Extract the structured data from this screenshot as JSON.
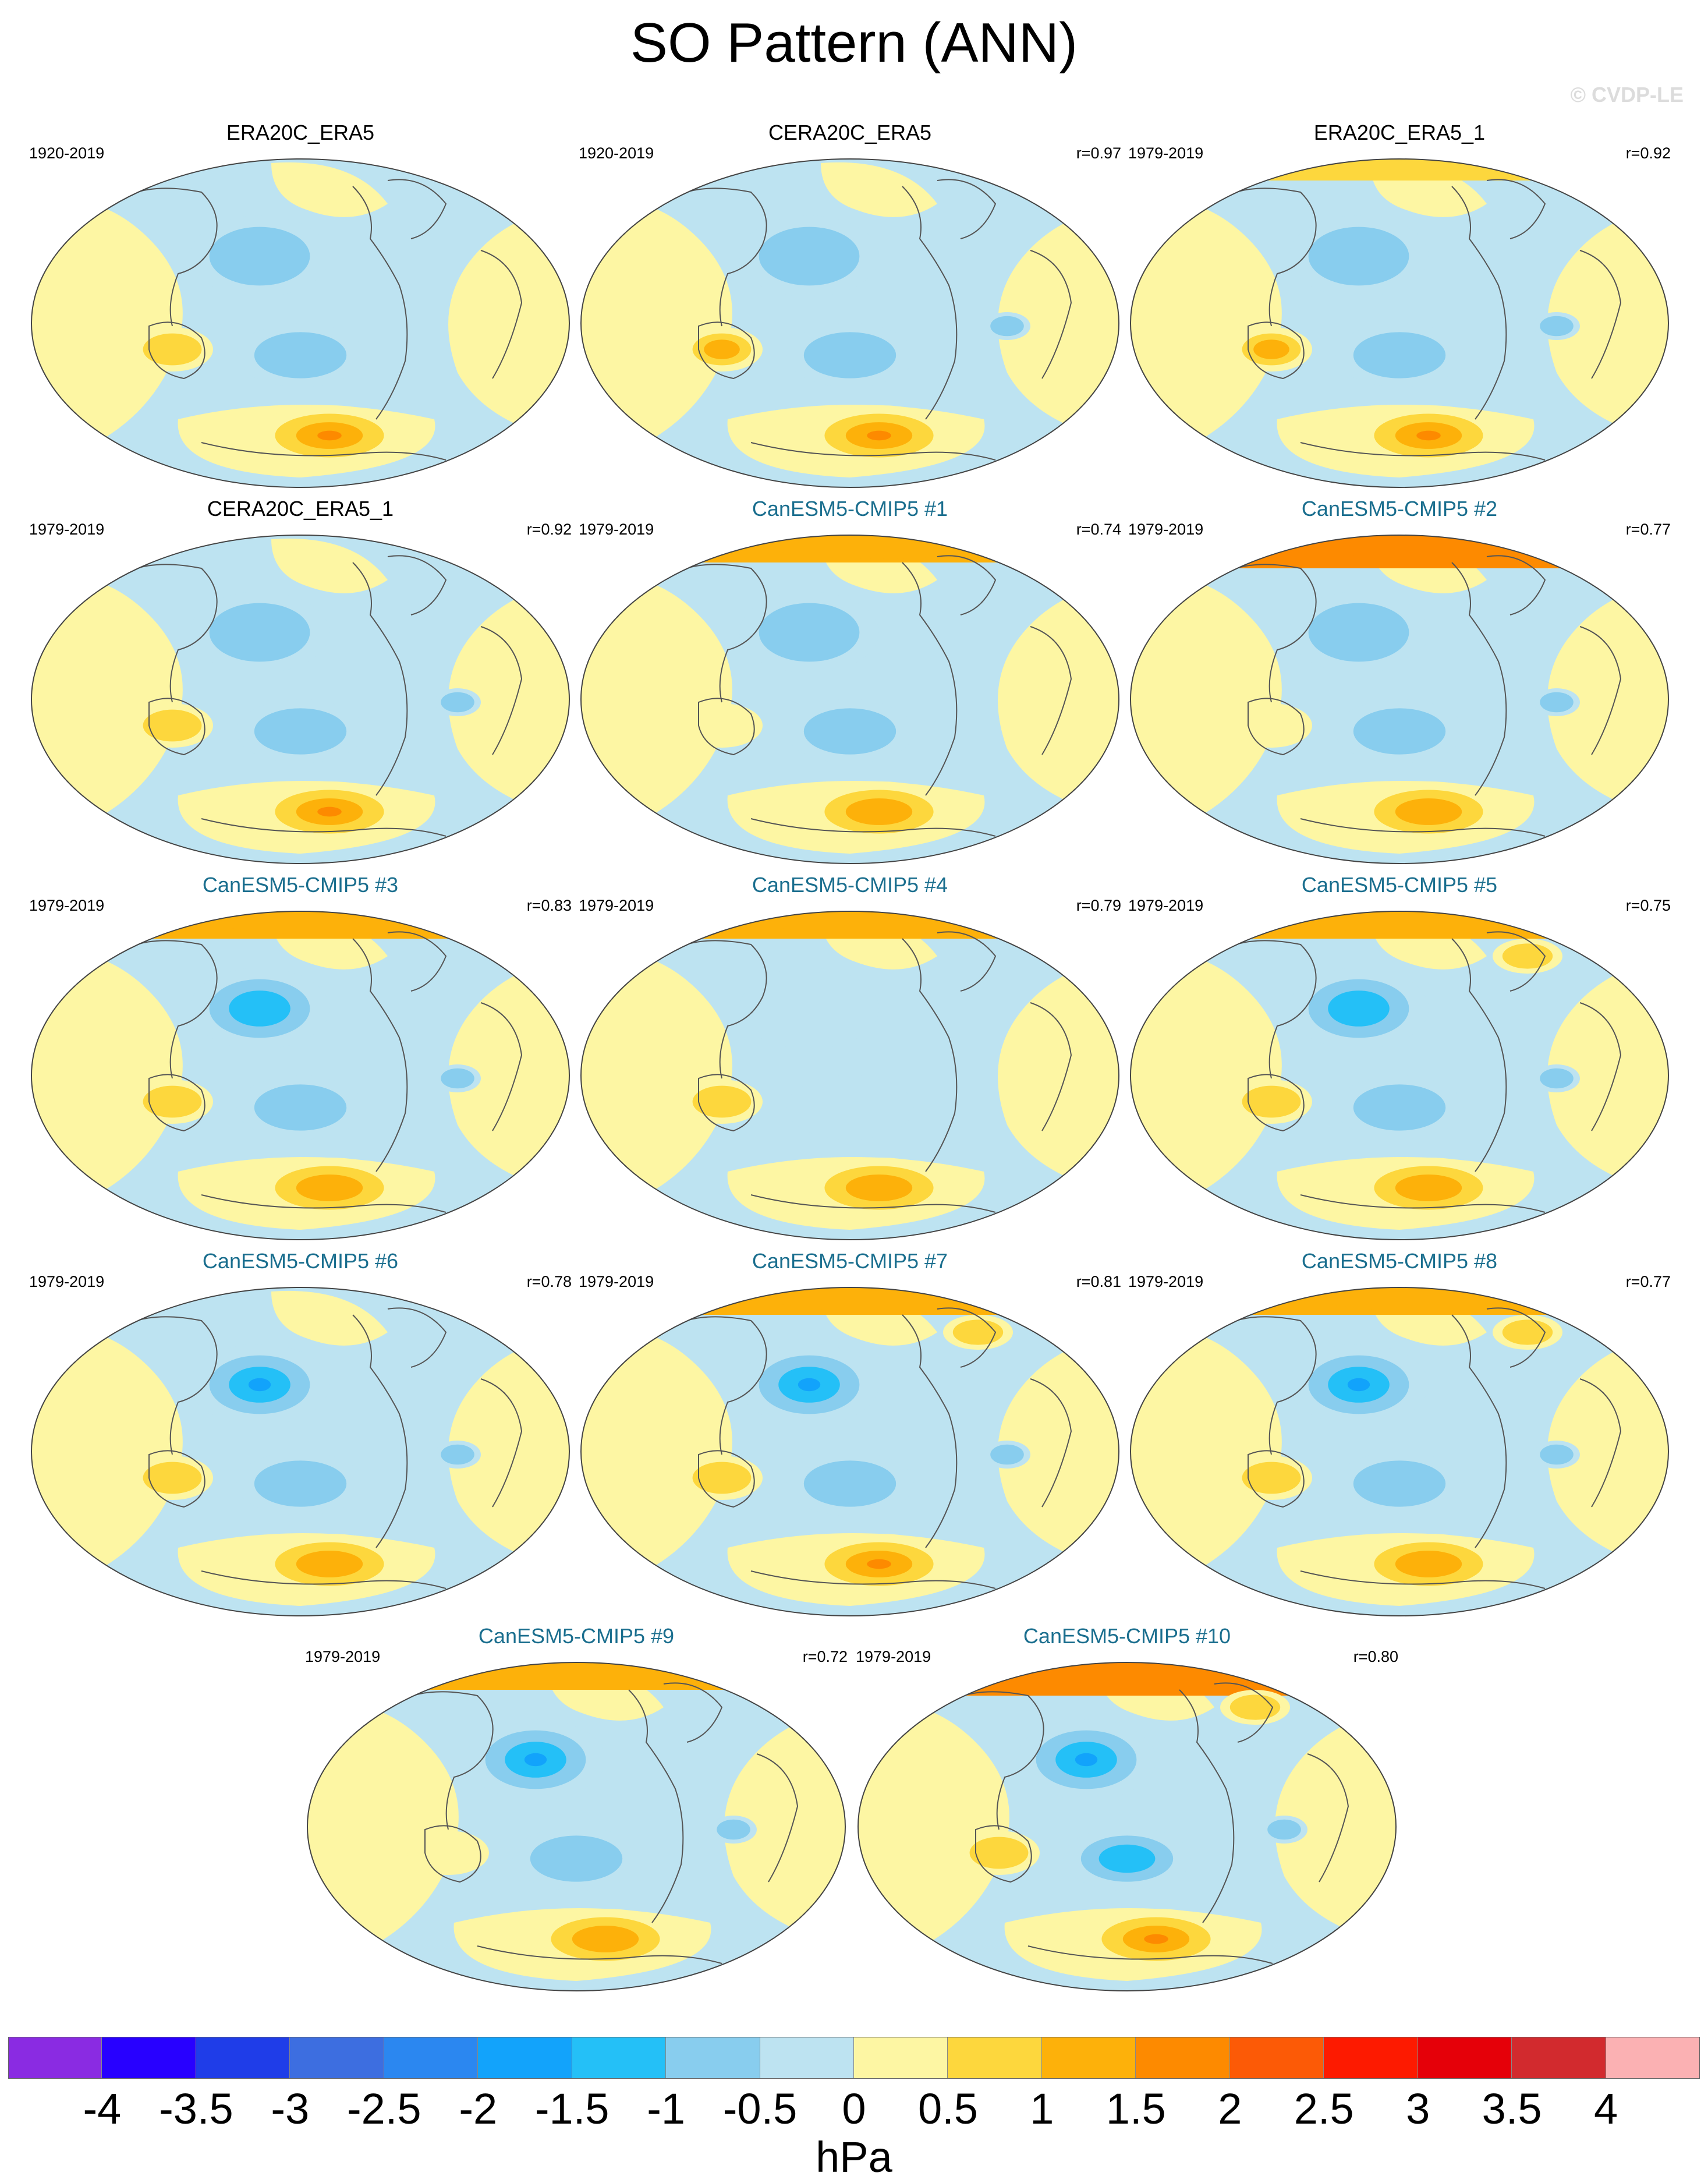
{
  "title": "SO Pattern (ANN)",
  "watermark": "© CVDP-LE",
  "colors": {
    "panel_title_model": "#1a6e8e",
    "land_outline": "#555555",
    "map_outline": "#444444"
  },
  "panels": [
    {
      "title": "ERA20C_ERA5",
      "period": "1920-2019",
      "r": "",
      "kind": "obs",
      "arctic": 0,
      "npac": 1,
      "spac": 1,
      "sams": 3,
      "aus": 1,
      "iceland": 0,
      "atl": 0
    },
    {
      "title": "CERA20C_ERA5",
      "period": "1920-2019",
      "r": "r=0.97",
      "kind": "obs",
      "arctic": 0,
      "npac": 1,
      "spac": 1,
      "sams": 3,
      "aus": 2,
      "iceland": 0,
      "atl": 1
    },
    {
      "title": "ERA20C_ERA5_1",
      "period": "1979-2019",
      "r": "r=0.92",
      "kind": "obs",
      "arctic": 1,
      "npac": 1,
      "spac": 1,
      "sams": 3,
      "aus": 2,
      "iceland": 0,
      "atl": 1
    },
    {
      "title": "CERA20C_ERA5_1",
      "period": "1979-2019",
      "r": "r=0.92",
      "kind": "obs",
      "arctic": 0,
      "npac": 1,
      "spac": 1,
      "sams": 3,
      "aus": 1,
      "iceland": 0,
      "atl": 1
    },
    {
      "title": "CanESM5-CMIP5 #1",
      "period": "1979-2019",
      "r": "r=0.74",
      "kind": "model",
      "arctic": 2,
      "npac": 1,
      "spac": 1,
      "sams": 2,
      "aus": 0,
      "iceland": 0,
      "atl": 0
    },
    {
      "title": "CanESM5-CMIP5 #2",
      "period": "1979-2019",
      "r": "r=0.77",
      "kind": "model",
      "arctic": 3,
      "npac": 1,
      "spac": 1,
      "sams": 2,
      "aus": 0,
      "iceland": 0,
      "atl": 1
    },
    {
      "title": "CanESM5-CMIP5 #3",
      "period": "1979-2019",
      "r": "r=0.83",
      "kind": "model",
      "arctic": 2,
      "npac": 2,
      "spac": 1,
      "sams": 2,
      "aus": 1,
      "iceland": 0,
      "atl": 1
    },
    {
      "title": "CanESM5-CMIP5 #4",
      "period": "1979-2019",
      "r": "r=0.79",
      "kind": "model",
      "arctic": 2,
      "npac": 0,
      "spac": 0,
      "sams": 2,
      "aus": 1,
      "iceland": 0,
      "atl": 0
    },
    {
      "title": "CanESM5-CMIP5 #5",
      "period": "1979-2019",
      "r": "r=0.75",
      "kind": "model",
      "arctic": 2,
      "npac": 2,
      "spac": 1,
      "sams": 2,
      "aus": 1,
      "iceland": 1,
      "atl": 1
    },
    {
      "title": "CanESM5-CMIP5 #6",
      "period": "1979-2019",
      "r": "r=0.78",
      "kind": "model",
      "arctic": 0,
      "npac": 3,
      "spac": 1,
      "sams": 2,
      "aus": 1,
      "iceland": 0,
      "atl": 1
    },
    {
      "title": "CanESM5-CMIP5 #7",
      "period": "1979-2019",
      "r": "r=0.81",
      "kind": "model",
      "arctic": 2,
      "npac": 3,
      "spac": 1,
      "sams": 3,
      "aus": 1,
      "iceland": 1,
      "atl": 1
    },
    {
      "title": "CanESM5-CMIP5 #8",
      "period": "1979-2019",
      "r": "r=0.77",
      "kind": "model",
      "arctic": 2,
      "npac": 3,
      "spac": 1,
      "sams": 2,
      "aus": 1,
      "iceland": 1,
      "atl": 1
    },
    {
      "title": "CanESM5-CMIP5 #9",
      "period": "1979-2019",
      "r": "r=0.72",
      "kind": "model",
      "arctic": 2,
      "npac": 3,
      "spac": 1,
      "sams": 2,
      "aus": 0,
      "iceland": 0,
      "atl": 1
    },
    {
      "title": "CanESM5-CMIP5 #10",
      "period": "1979-2019",
      "r": "r=0.80",
      "kind": "model",
      "arctic": 3,
      "npac": 3,
      "spac": 2,
      "sams": 3,
      "aus": 1,
      "iceland": 1,
      "atl": 1
    }
  ],
  "colorbar": {
    "colors": [
      "#8a2be2",
      "#2800ff",
      "#1f3de8",
      "#3d6ee0",
      "#2b87f0",
      "#12a3fb",
      "#24c0f7",
      "#88cdee",
      "#bde3f1",
      "#fdf6a3",
      "#fdd73d",
      "#fdb10a",
      "#fd8a00",
      "#fc5a06",
      "#fd1a00",
      "#e50009",
      "#d22a2e",
      "#fbb1b3"
    ],
    "ticks": [
      "-4",
      "-3.5",
      "-3",
      "-2.5",
      "-2",
      "-1.5",
      "-1",
      "-0.5",
      "0",
      "0.5",
      "1",
      "1.5",
      "2",
      "2.5",
      "3",
      "3.5",
      "4"
    ],
    "unit": "hPa"
  }
}
